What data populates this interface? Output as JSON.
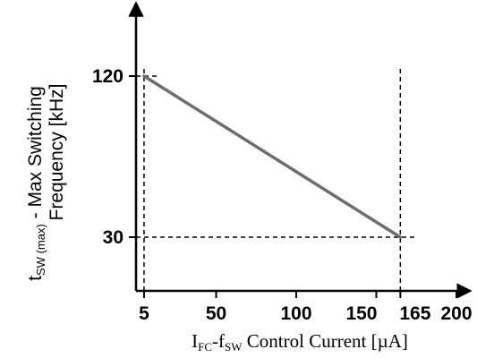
{
  "chart_data": {
    "type": "line",
    "series": [
      {
        "x": [
          5,
          165
        ],
        "y": [
          120,
          30
        ]
      }
    ],
    "x_ticks": [
      5,
      50,
      100,
      150,
      165,
      200
    ],
    "y_ticks": [
      120,
      30
    ],
    "xlim": [
      0,
      200
    ],
    "ylim": [
      0,
      160
    ],
    "xlabel": {
      "main_1": "I",
      "sub_1": "FC",
      "main_2": "-f",
      "sub_2": "SW",
      "main_3": " Control Current [µA]"
    },
    "ylabel": {
      "line1_main_1": "t",
      "line1_sub_1": "SW",
      "line1_sub_2": " (max)",
      "line1_main_2": " - Max Switching",
      "line2": "Frequency [kHz]"
    },
    "colors": {
      "line": "#6e6e6e",
      "axis": "#000000"
    },
    "grid": false,
    "reference_lines": "dashed"
  }
}
